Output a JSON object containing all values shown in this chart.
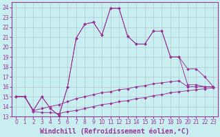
{
  "xlabel": "Windchill (Refroidissement éolien,°C)",
  "background_color": "#c8eef0",
  "grid_color": "#b0c8d0",
  "line_color": "#993399",
  "x_values": [
    0,
    1,
    2,
    3,
    4,
    5,
    6,
    7,
    8,
    9,
    10,
    11,
    12,
    13,
    14,
    15,
    16,
    17,
    18,
    19,
    20,
    21,
    22,
    23
  ],
  "series": [
    [
      15.0,
      15.0,
      13.6,
      15.0,
      13.8,
      13.1,
      16.0,
      20.9,
      22.3,
      22.5,
      21.2,
      23.9,
      23.9,
      21.1,
      20.3,
      20.3,
      21.6,
      21.6,
      19.0,
      19.0,
      16.2,
      16.2,
      16.0,
      16.0
    ],
    [
      15.0,
      15.0,
      13.6,
      15.0,
      13.8,
      13.1,
      16.0,
      20.9,
      22.3,
      22.5,
      21.2,
      23.9,
      23.9,
      21.1,
      20.3,
      20.3,
      21.6,
      21.6,
      19.0,
      19.0,
      17.8,
      17.8,
      17.0,
      16.0
    ],
    [
      15.0,
      15.0,
      13.6,
      13.8,
      14.0,
      14.2,
      14.5,
      14.8,
      15.0,
      15.2,
      15.4,
      15.5,
      15.7,
      15.8,
      16.0,
      16.1,
      16.3,
      16.4,
      16.5,
      16.6,
      16.0,
      16.0,
      16.0,
      16.0
    ],
    [
      15.0,
      15.0,
      13.5,
      13.4,
      13.4,
      13.3,
      13.5,
      13.6,
      13.8,
      14.0,
      14.2,
      14.3,
      14.5,
      14.6,
      14.8,
      14.9,
      15.1,
      15.2,
      15.4,
      15.5,
      15.6,
      15.7,
      15.8,
      15.9
    ]
  ],
  "ylim": [
    13,
    24.5
  ],
  "xlim": [
    -0.5,
    23.5
  ],
  "yticks": [
    13,
    14,
    15,
    16,
    17,
    18,
    19,
    20,
    21,
    22,
    23,
    24
  ],
  "xticks": [
    0,
    1,
    2,
    3,
    4,
    5,
    6,
    7,
    8,
    9,
    10,
    11,
    12,
    13,
    14,
    15,
    16,
    17,
    18,
    19,
    20,
    21,
    22,
    23
  ],
  "tick_fontsize": 5.5,
  "xlabel_fontsize": 7.0
}
